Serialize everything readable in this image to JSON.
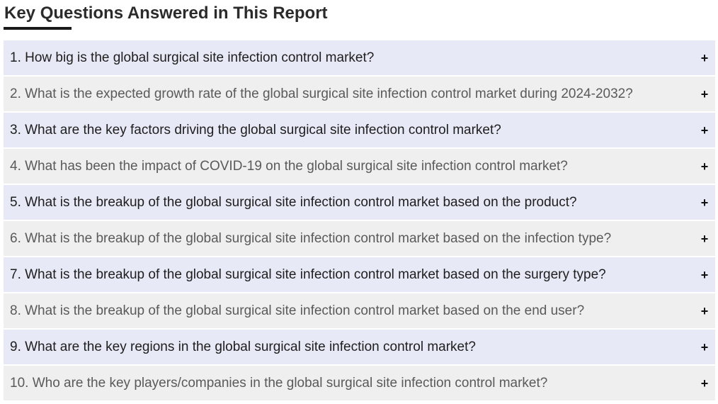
{
  "heading": "Key Questions Answered in This Report",
  "icons": {
    "expand": "plus-icon"
  },
  "colors": {
    "row_odd": "#e8e9f6",
    "row_even": "#efefef"
  },
  "faq": [
    {
      "question": "1. How big is the global surgical site infection control market?",
      "toggle": "+"
    },
    {
      "question": "2. What is the expected growth rate of the global surgical site infection control market during 2024-2032?",
      "toggle": "+"
    },
    {
      "question": "3. What are the key factors driving the global surgical site infection control market?",
      "toggle": "+"
    },
    {
      "question": "4. What has been the impact of COVID-19 on the global surgical site infection control market?",
      "toggle": "+"
    },
    {
      "question": "5. What is the breakup of the global surgical site infection control market based on the product?",
      "toggle": "+"
    },
    {
      "question": "6. What is the breakup of the global surgical site infection control market based on the infection type?",
      "toggle": "+"
    },
    {
      "question": "7. What is the breakup of the global surgical site infection control market based on the surgery type?",
      "toggle": "+"
    },
    {
      "question": "8. What is the breakup of the global surgical site infection control market based on the end user?",
      "toggle": "+"
    },
    {
      "question": "9. What are the key regions in the global surgical site infection control market?",
      "toggle": "+"
    },
    {
      "question": "10. Who are the key players/companies in the global surgical site infection control market?",
      "toggle": "+"
    }
  ]
}
